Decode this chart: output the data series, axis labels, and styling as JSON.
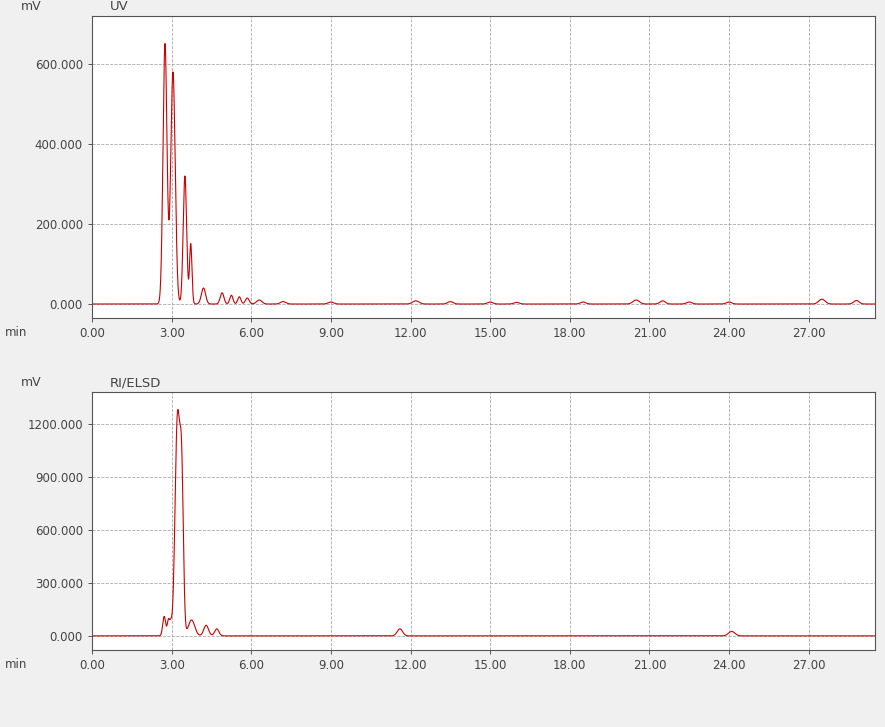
{
  "uv_ylabel": "mV",
  "uv_title": "UV",
  "elsd_ylabel": "mV",
  "elsd_title": "RI/ELSD",
  "xlabel": "min",
  "line_color": "#cc0000",
  "background_color": "#f0f0f0",
  "plot_bg_color": "#ffffff",
  "grid_color": "#a0a0a0",
  "grid_style": "--",
  "uv_yticks": [
    0.0,
    200.0,
    400.0,
    600.0
  ],
  "uv_ytick_labels": [
    "0.000",
    "200.000",
    "400.000",
    "600.000"
  ],
  "uv_ylim": [
    -35,
    720
  ],
  "elsd_yticks": [
    0.0,
    300.0,
    600.0,
    900.0,
    1200.0
  ],
  "elsd_ytick_labels": [
    "0.000",
    "300.000",
    "600.000",
    "900.000",
    "1200.000"
  ],
  "elsd_ylim": [
    -80,
    1380
  ],
  "xlim": [
    0.0,
    29.5
  ],
  "xticks": [
    0.0,
    3.0,
    6.0,
    9.0,
    12.0,
    15.0,
    18.0,
    21.0,
    24.0,
    27.0
  ],
  "xtick_labels": [
    "0.00",
    "3.00",
    "6.00",
    "9.00",
    "12.00",
    "15.00",
    "18.00",
    "21.00",
    "24.00",
    "27.00"
  ],
  "top_bar_color": "#333333",
  "separator_color": "#888888",
  "bottom_bar_color": "#333333",
  "label_color": "#444444",
  "tick_color": "#444444",
  "spine_color": "#555555"
}
